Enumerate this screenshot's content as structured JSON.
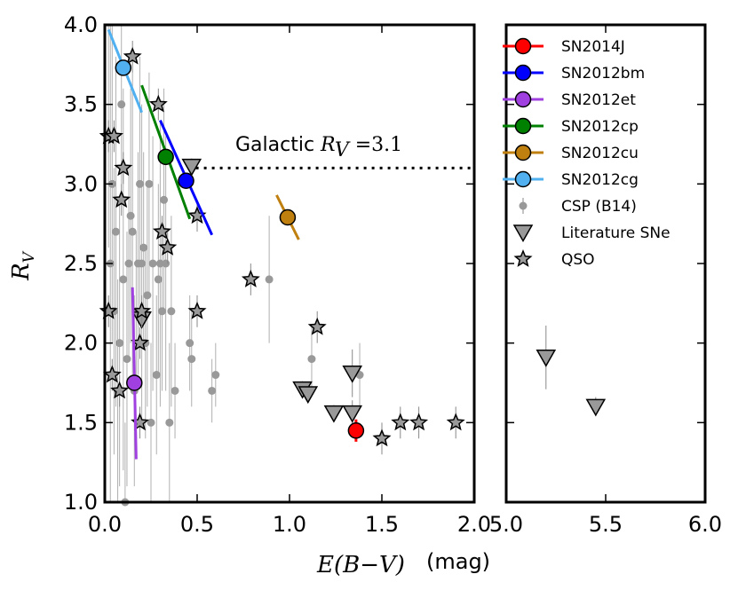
{
  "chart_data": {
    "type": "scatter",
    "xlabel": "E(B−V)",
    "xlabel_unit": "(mag)",
    "ylabel": "R",
    "ylabel_sub": "V",
    "ylim": [
      1.0,
      4.0
    ],
    "left_panel": {
      "xlim": [
        0.0,
        2.0
      ],
      "xticks": [
        "0.0",
        "0.5",
        "1.0",
        "1.5",
        "2.0"
      ]
    },
    "right_panel": {
      "xlim": [
        5.0,
        6.0
      ],
      "xticks": [
        "5.0",
        "5.5",
        "6.0"
      ]
    },
    "yticks": [
      "1.0",
      "1.5",
      "2.0",
      "2.5",
      "3.0",
      "3.5",
      "4.0"
    ],
    "annotation": {
      "prefix": "Galactic ",
      "var": "R",
      "sub": "V",
      "suffix": " =3.1",
      "y": 3.1
    },
    "colors": {
      "SN2014J": "#ff0000",
      "SN2012bm": "#0000ff",
      "SN2012et": "#a040e0",
      "SN2012cp": "#008000",
      "SN2012cu": "#c08010",
      "SN2012cg": "#50b0f0",
      "csp": "#999999",
      "lit": "#999999",
      "qso": "#999999"
    },
    "series": [
      {
        "name": "SN2014J",
        "key": "SN2014J",
        "marker": "circle",
        "points": [
          {
            "x": 1.36,
            "y": 1.45
          }
        ],
        "segments": [
          {
            "x1": 1.36,
            "y1": 1.38,
            "x2": 1.36,
            "y2": 1.52
          }
        ]
      },
      {
        "name": "SN2012bm",
        "key": "SN2012bm",
        "marker": "circle",
        "points": [
          {
            "x": 0.44,
            "y": 3.02
          }
        ],
        "segments": [
          {
            "x1": 0.3,
            "y1": 3.4,
            "x2": 0.58,
            "y2": 2.68
          }
        ]
      },
      {
        "name": "SN2012et",
        "key": "SN2012et",
        "marker": "circle",
        "points": [
          {
            "x": 0.16,
            "y": 1.75
          }
        ],
        "segments": [
          {
            "x1": 0.15,
            "y1": 2.35,
            "x2": 0.17,
            "y2": 1.27
          }
        ]
      },
      {
        "name": "SN2012cp",
        "key": "SN2012cp",
        "marker": "circle",
        "points": [
          {
            "x": 0.33,
            "y": 3.17
          }
        ],
        "segments": [
          {
            "x1": 0.2,
            "y1": 3.62,
            "x2": 0.46,
            "y2": 2.78
          }
        ]
      },
      {
        "name": "SN2012cu",
        "key": "SN2012cu",
        "marker": "circle",
        "points": [
          {
            "x": 0.99,
            "y": 2.79
          }
        ],
        "segments": [
          {
            "x1": 0.93,
            "y1": 2.93,
            "x2": 1.05,
            "y2": 2.65
          }
        ]
      },
      {
        "name": "SN2012cg",
        "key": "SN2012cg",
        "marker": "circle",
        "points": [
          {
            "x": 0.1,
            "y": 3.73
          }
        ],
        "segments": [
          {
            "x1": 0.02,
            "y1": 3.97,
            "x2": 0.2,
            "y2": 3.45
          }
        ]
      },
      {
        "name": "CSP (B14)",
        "key": "csp",
        "marker": "dot",
        "points": [
          {
            "x": 0.02,
            "y": 3.3,
            "e": 0.7
          },
          {
            "x": 0.03,
            "y": 2.5,
            "e": 1.5
          },
          {
            "x": 0.04,
            "y": 3.0,
            "e": 1.0
          },
          {
            "x": 0.05,
            "y": 2.2,
            "e": 0.9
          },
          {
            "x": 0.06,
            "y": 2.7,
            "e": 1.1
          },
          {
            "x": 0.07,
            "y": 1.7,
            "e": 0.7
          },
          {
            "x": 0.08,
            "y": 2.0,
            "e": 0.9
          },
          {
            "x": 0.09,
            "y": 3.5,
            "e": 0.5
          },
          {
            "x": 0.1,
            "y": 2.4,
            "e": 1.2
          },
          {
            "x": 0.11,
            "y": 1.0,
            "e": 0.5
          },
          {
            "x": 0.12,
            "y": 1.9,
            "e": 0.8
          },
          {
            "x": 0.13,
            "y": 2.5,
            "e": 0.6
          },
          {
            "x": 0.14,
            "y": 2.8,
            "e": 0.8
          },
          {
            "x": 0.15,
            "y": 2.7,
            "e": 1.0
          },
          {
            "x": 0.16,
            "y": 1.7,
            "e": 0.6
          },
          {
            "x": 0.17,
            "y": 2.2,
            "e": 0.5
          },
          {
            "x": 0.18,
            "y": 2.5,
            "e": 0.7
          },
          {
            "x": 0.19,
            "y": 3.0,
            "e": 0.8
          },
          {
            "x": 0.2,
            "y": 2.5,
            "e": 1.0
          },
          {
            "x": 0.21,
            "y": 2.6,
            "e": 0.6
          },
          {
            "x": 0.22,
            "y": 2.0,
            "e": 0.6
          },
          {
            "x": 0.23,
            "y": 2.3,
            "e": 0.7
          },
          {
            "x": 0.24,
            "y": 3.0,
            "e": 0.7
          },
          {
            "x": 0.25,
            "y": 1.5,
            "e": 0.5
          },
          {
            "x": 0.26,
            "y": 2.5,
            "e": 0.8
          },
          {
            "x": 0.28,
            "y": 1.8,
            "e": 0.5
          },
          {
            "x": 0.29,
            "y": 2.4,
            "e": 0.6
          },
          {
            "x": 0.3,
            "y": 2.5,
            "e": 0.9
          },
          {
            "x": 0.31,
            "y": 2.2,
            "e": 0.5
          },
          {
            "x": 0.32,
            "y": 2.9,
            "e": 0.7
          },
          {
            "x": 0.33,
            "y": 2.5,
            "e": 0.8
          },
          {
            "x": 0.35,
            "y": 1.5,
            "e": 0.5
          },
          {
            "x": 0.36,
            "y": 2.2,
            "e": 0.6
          },
          {
            "x": 0.38,
            "y": 1.7,
            "e": 0.3
          },
          {
            "x": 0.46,
            "y": 2.0,
            "e": 0.3
          },
          {
            "x": 0.47,
            "y": 1.9,
            "e": 0.3
          },
          {
            "x": 0.58,
            "y": 1.7,
            "e": 0.2
          },
          {
            "x": 0.6,
            "y": 1.8,
            "e": 0.2
          },
          {
            "x": 0.89,
            "y": 2.4,
            "e": 0.4
          },
          {
            "x": 1.12,
            "y": 1.9,
            "e": 0.2
          },
          {
            "x": 1.38,
            "y": 1.8,
            "e": 0.2
          }
        ]
      },
      {
        "name": "Literature SNe",
        "key": "lit",
        "marker": "triangle",
        "points": [
          {
            "x": 0.47,
            "y": 3.11,
            "e": 0.05
          },
          {
            "x": 0.2,
            "y": 2.15,
            "e": 0.05
          },
          {
            "x": 1.07,
            "y": 1.71,
            "e": 0.05
          },
          {
            "x": 1.1,
            "y": 1.68,
            "e": 0.05
          },
          {
            "x": 1.24,
            "y": 1.56,
            "e": 0.05
          },
          {
            "x": 1.34,
            "y": 1.56,
            "e": 0.08
          },
          {
            "x": 1.34,
            "y": 1.81,
            "e": 0.15
          },
          {
            "x": 5.2,
            "y": 1.91,
            "e": 0.2
          },
          {
            "x": 5.45,
            "y": 1.6,
            "e": 0.06
          }
        ]
      },
      {
        "name": "QSO",
        "key": "qso",
        "marker": "star",
        "points": [
          {
            "x": 0.15,
            "y": 3.8,
            "e": 0.1
          },
          {
            "x": 0.29,
            "y": 3.5,
            "e": 0.1
          },
          {
            "x": 0.02,
            "y": 3.3,
            "e": 0.1
          },
          {
            "x": 0.05,
            "y": 3.3,
            "e": 0.1
          },
          {
            "x": 0.1,
            "y": 3.1,
            "e": 0.1
          },
          {
            "x": 0.09,
            "y": 2.9,
            "e": 0.1
          },
          {
            "x": 0.5,
            "y": 2.8,
            "e": 0.1
          },
          {
            "x": 0.31,
            "y": 2.7,
            "e": 0.1
          },
          {
            "x": 0.34,
            "y": 2.6,
            "e": 0.1
          },
          {
            "x": 0.79,
            "y": 2.4,
            "e": 0.1
          },
          {
            "x": 0.02,
            "y": 2.2,
            "e": 0.1
          },
          {
            "x": 0.2,
            "y": 2.2,
            "e": 0.1
          },
          {
            "x": 0.5,
            "y": 2.2,
            "e": 0.1
          },
          {
            "x": 1.15,
            "y": 2.1,
            "e": 0.1
          },
          {
            "x": 0.19,
            "y": 2.0,
            "e": 0.1
          },
          {
            "x": 0.04,
            "y": 1.8,
            "e": 0.1
          },
          {
            "x": 0.08,
            "y": 1.7,
            "e": 0.1
          },
          {
            "x": 0.19,
            "y": 1.5,
            "e": 0.1
          },
          {
            "x": 1.5,
            "y": 1.4,
            "e": 0.1
          },
          {
            "x": 1.6,
            "y": 1.5,
            "e": 0.1
          },
          {
            "x": 1.7,
            "y": 1.5,
            "e": 0.1
          },
          {
            "x": 1.9,
            "y": 1.5,
            "e": 0.1
          }
        ]
      }
    ]
  }
}
